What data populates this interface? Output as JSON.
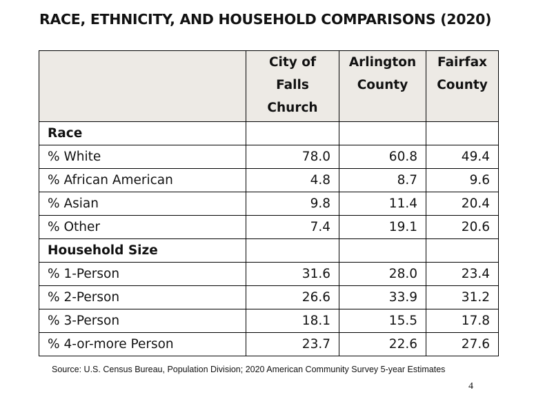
{
  "title": "RACE, ETHNICITY, AND HOUSEHOLD COMPARISONS (2020)",
  "columns": [
    "City of Falls Church",
    "Arlington County",
    "Fairfax County"
  ],
  "header_lines": [
    [
      "City of",
      "Falls",
      "Church"
    ],
    [
      "Arlington",
      "County"
    ],
    [
      "Fairfax",
      "County"
    ]
  ],
  "sections": [
    {
      "label": "Race",
      "rows": [
        {
          "label": "% White",
          "values": [
            "78.0",
            "60.8",
            "49.4"
          ]
        },
        {
          "label": "% African American",
          "values": [
            "4.8",
            "8.7",
            "9.6"
          ]
        },
        {
          "label": "% Asian",
          "values": [
            "9.8",
            "11.4",
            "20.4"
          ]
        },
        {
          "label": "% Other",
          "values": [
            "7.4",
            "19.1",
            "20.6"
          ]
        }
      ]
    },
    {
      "label": "Household Size",
      "rows": [
        {
          "label": "% 1-Person",
          "values": [
            "31.6",
            "28.0",
            "23.4"
          ]
        },
        {
          "label": "% 2-Person",
          "values": [
            "26.6",
            "33.9",
            "31.2"
          ]
        },
        {
          "label": "% 3-Person",
          "values": [
            "18.1",
            "15.5",
            "17.8"
          ]
        },
        {
          "label": "% 4-or-more Person",
          "values": [
            "23.7",
            "22.6",
            "27.6"
          ]
        }
      ]
    }
  ],
  "source": "Source: U.S. Census Bureau, Population Division; 2020 American Community Survey 5-year Estimates",
  "page_number": "4"
}
